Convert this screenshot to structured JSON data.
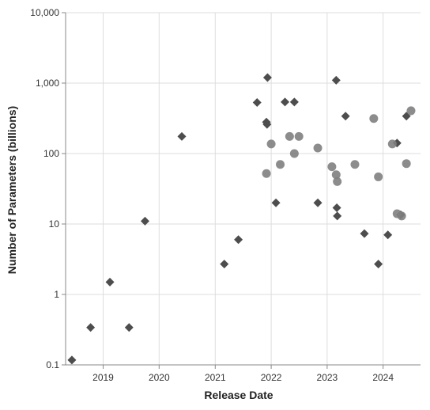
{
  "chart_data": {
    "type": "scatter",
    "xlabel": "Release Date",
    "ylabel": "Number of Parameters (billions)",
    "x_scale": "time",
    "y_scale": "log",
    "xlim": [
      "2018-05-01",
      "2024-09-01"
    ],
    "ylim": [
      0.1,
      10000
    ],
    "grid": true,
    "legend": "none",
    "x_ticks": [
      {
        "date": "2019-01-01",
        "label": "2019"
      },
      {
        "date": "2020-01-01",
        "label": "2020"
      },
      {
        "date": "2021-01-01",
        "label": "2021"
      },
      {
        "date": "2022-01-01",
        "label": "2022"
      },
      {
        "date": "2023-01-01",
        "label": "2023"
      },
      {
        "date": "2024-01-01",
        "label": "2024"
      }
    ],
    "y_ticks": [
      {
        "value": 0.1,
        "label": "0.1"
      },
      {
        "value": 1,
        "label": "1"
      },
      {
        "value": 10,
        "label": "10"
      },
      {
        "value": 100,
        "label": "100"
      },
      {
        "value": 1000,
        "label": "1,000"
      },
      {
        "value": 10000,
        "label": "10,000"
      }
    ],
    "series": [
      {
        "marker": "diamond",
        "color": "#4d4d4d",
        "points": [
          {
            "x": "2018-06-11",
            "y": 0.117
          },
          {
            "x": "2018-10-11",
            "y": 0.34
          },
          {
            "x": "2019-02-14",
            "y": 1.5
          },
          {
            "x": "2019-06-19",
            "y": 0.34
          },
          {
            "x": "2019-10-01",
            "y": 11
          },
          {
            "x": "2020-05-28",
            "y": 175
          },
          {
            "x": "2021-03-01",
            "y": 2.7
          },
          {
            "x": "2021-06-01",
            "y": 6
          },
          {
            "x": "2021-10-01",
            "y": 530
          },
          {
            "x": "2021-12-01",
            "y": 280
          },
          {
            "x": "2021-12-05",
            "y": 260
          },
          {
            "x": "2021-12-08",
            "y": 1200
          },
          {
            "x": "2022-02-01",
            "y": 20
          },
          {
            "x": "2022-04-01",
            "y": 540
          },
          {
            "x": "2022-06-01",
            "y": 540
          },
          {
            "x": "2022-11-01",
            "y": 20
          },
          {
            "x": "2023-03-01",
            "y": 1100
          },
          {
            "x": "2023-03-05",
            "y": 17
          },
          {
            "x": "2023-03-08",
            "y": 13
          },
          {
            "x": "2023-05-01",
            "y": 340
          },
          {
            "x": "2023-09-01",
            "y": 7.3
          },
          {
            "x": "2023-12-01",
            "y": 2.7
          },
          {
            "x": "2024-02-01",
            "y": 7
          },
          {
            "x": "2024-04-01",
            "y": 141
          },
          {
            "x": "2024-04-25",
            "y": 13.5
          },
          {
            "x": "2024-06-01",
            "y": 340
          }
        ]
      },
      {
        "marker": "circle",
        "color": "#7f7f7f",
        "points": [
          {
            "x": "2021-12-01",
            "y": 52
          },
          {
            "x": "2022-01-01",
            "y": 137
          },
          {
            "x": "2022-03-01",
            "y": 70
          },
          {
            "x": "2022-05-01",
            "y": 175
          },
          {
            "x": "2022-06-01",
            "y": 100
          },
          {
            "x": "2022-07-01",
            "y": 175
          },
          {
            "x": "2022-11-01",
            "y": 120
          },
          {
            "x": "2023-02-01",
            "y": 65
          },
          {
            "x": "2023-03-01",
            "y": 50
          },
          {
            "x": "2023-03-08",
            "y": 40
          },
          {
            "x": "2023-07-01",
            "y": 70
          },
          {
            "x": "2023-11-01",
            "y": 314
          },
          {
            "x": "2023-12-01",
            "y": 46.7
          },
          {
            "x": "2024-03-01",
            "y": 137
          },
          {
            "x": "2024-04-01",
            "y": 14
          },
          {
            "x": "2024-05-01",
            "y": 13
          },
          {
            "x": "2024-06-01",
            "y": 72
          },
          {
            "x": "2024-07-01",
            "y": 405
          }
        ]
      }
    ]
  }
}
